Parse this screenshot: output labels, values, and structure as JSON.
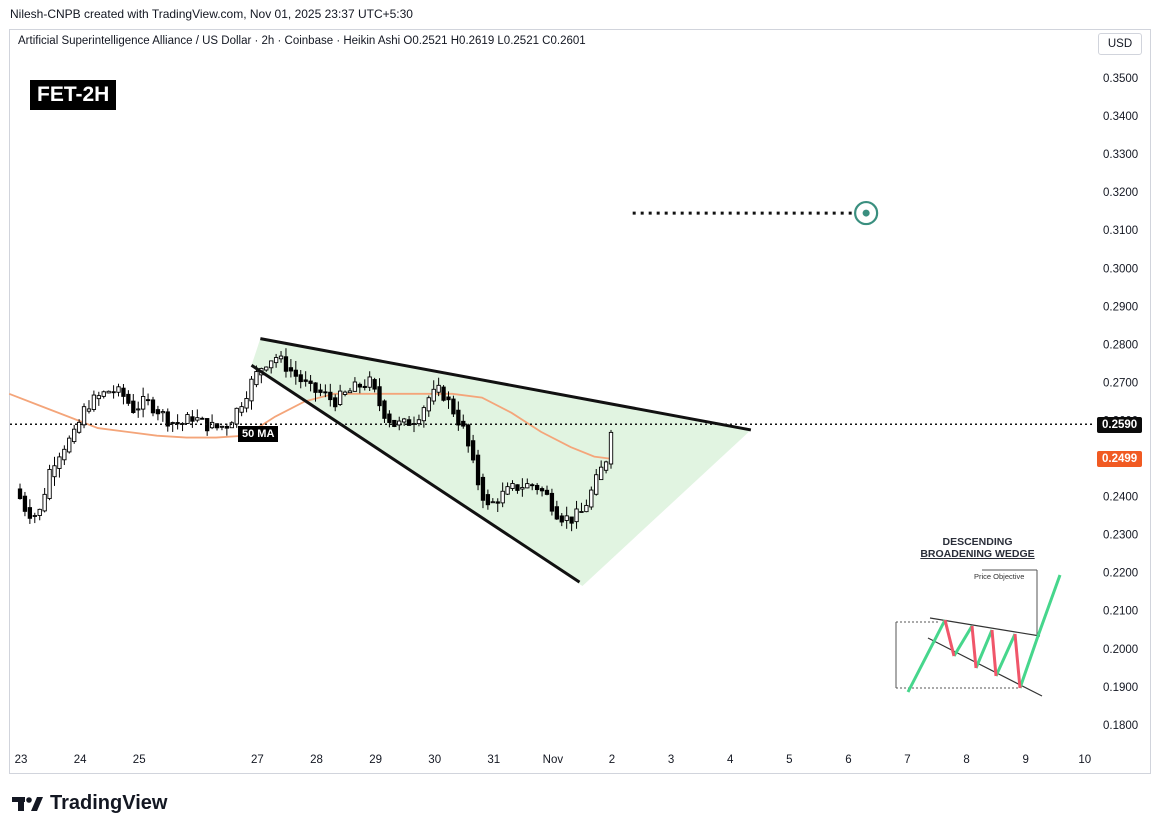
{
  "header": {
    "credit": "Nilesh-CNPB created with TradingView.com, Nov 01, 2025 23:37 UTC+5:30",
    "legend": "Artificial Superintelligence Alliance / US Dollar · 2h · Coinbase · Heikin Ashi  O0.2521  H0.2619  L0.2521  C0.2601",
    "currency": "USD"
  },
  "tag": "FET-2H",
  "ma_label": "50 MA",
  "price_badges": {
    "current": "0.2590",
    "ma": "0.2499"
  },
  "footer": {
    "brand": "TradingView"
  },
  "inset": {
    "title_line1": "DESCENDING",
    "title_line2": "BROADENING WEDGE",
    "objective_label": "Price Objective"
  },
  "colors": {
    "up": "#000000",
    "down": "#000000",
    "ma": "#f4a57a",
    "wedge_fill": "#c8ebc8",
    "target": "#3a8f7f",
    "badge_ma": "#f15a22",
    "inset_green": "#46d68c",
    "inset_red": "#f0566a"
  },
  "chart_data": {
    "type": "candlestick",
    "title": "Artificial Superintelligence Alliance / US Dollar · 2h · Coinbase · Heikin Ashi",
    "ylim": [
      0.175,
      0.359
    ],
    "y_ticks": [
      "0.3500",
      "0.3400",
      "0.3300",
      "0.3200",
      "0.3100",
      "0.3000",
      "0.2900",
      "0.2800",
      "0.2700",
      "0.2600",
      "0.2500",
      "0.2400",
      "0.2300",
      "0.2200",
      "0.2100",
      "0.2000",
      "0.1900",
      "0.1800"
    ],
    "x_ticks": [
      {
        "label": "23",
        "x": 0
      },
      {
        "label": "24",
        "x": 1
      },
      {
        "label": "25",
        "x": 2
      },
      {
        "label": "27",
        "x": 4
      },
      {
        "label": "28",
        "x": 5
      },
      {
        "label": "29",
        "x": 6
      },
      {
        "label": "30",
        "x": 7
      },
      {
        "label": "31",
        "x": 8
      },
      {
        "label": "Nov",
        "x": 9
      },
      {
        "label": "2",
        "x": 10
      },
      {
        "label": "3",
        "x": 11
      },
      {
        "label": "4",
        "x": 12
      },
      {
        "label": "5",
        "x": 13
      },
      {
        "label": "6",
        "x": 14
      },
      {
        "label": "7",
        "x": 15
      },
      {
        "label": "8",
        "x": 16
      },
      {
        "label": "9",
        "x": 17
      },
      {
        "label": "10",
        "x": 18
      }
    ],
    "current_price": 0.259,
    "ma50_value": 0.2499,
    "close_path": [
      [
        -0.1,
        0.242
      ],
      [
        0.1,
        0.236
      ],
      [
        0.3,
        0.235
      ],
      [
        0.5,
        0.248
      ],
      [
        0.7,
        0.253
      ],
      [
        0.9,
        0.256
      ],
      [
        1.1,
        0.264
      ],
      [
        1.3,
        0.266
      ],
      [
        1.5,
        0.268
      ],
      [
        1.7,
        0.267
      ],
      [
        1.9,
        0.263
      ],
      [
        2.1,
        0.265
      ],
      [
        2.3,
        0.263
      ],
      [
        2.5,
        0.26
      ],
      [
        2.7,
        0.259
      ],
      [
        2.9,
        0.261
      ],
      [
        3.1,
        0.259
      ],
      [
        3.3,
        0.258
      ],
      [
        3.5,
        0.259
      ],
      [
        3.7,
        0.264
      ],
      [
        3.9,
        0.27
      ],
      [
        4.1,
        0.275
      ],
      [
        4.3,
        0.277
      ],
      [
        4.5,
        0.274
      ],
      [
        4.7,
        0.271
      ],
      [
        4.9,
        0.268
      ],
      [
        5.1,
        0.267
      ],
      [
        5.3,
        0.265
      ],
      [
        5.5,
        0.267
      ],
      [
        5.7,
        0.269
      ],
      [
        5.9,
        0.27
      ],
      [
        6.1,
        0.263
      ],
      [
        6.3,
        0.259
      ],
      [
        6.5,
        0.259
      ],
      [
        6.7,
        0.261
      ],
      [
        6.9,
        0.266
      ],
      [
        7.1,
        0.268
      ],
      [
        7.3,
        0.263
      ],
      [
        7.5,
        0.257
      ],
      [
        7.7,
        0.245
      ],
      [
        7.9,
        0.237
      ],
      [
        8.1,
        0.24
      ],
      [
        8.3,
        0.242
      ],
      [
        8.5,
        0.243
      ],
      [
        8.7,
        0.243
      ],
      [
        8.9,
        0.24
      ],
      [
        9.1,
        0.235
      ],
      [
        9.3,
        0.234
      ],
      [
        9.5,
        0.236
      ],
      [
        9.7,
        0.243
      ],
      [
        9.9,
        0.25
      ],
      [
        10.0,
        0.2601
      ]
    ],
    "ma50": [
      [
        -0.2,
        0.267
      ],
      [
        0.3,
        0.264
      ],
      [
        0.8,
        0.261
      ],
      [
        1.3,
        0.258
      ],
      [
        1.8,
        0.257
      ],
      [
        2.3,
        0.256
      ],
      [
        2.8,
        0.2555
      ],
      [
        3.3,
        0.2555
      ],
      [
        3.8,
        0.256
      ],
      [
        4.3,
        0.261
      ],
      [
        4.8,
        0.265
      ],
      [
        5.3,
        0.267
      ],
      [
        5.8,
        0.267
      ],
      [
        6.3,
        0.267
      ],
      [
        6.8,
        0.267
      ],
      [
        7.3,
        0.267
      ],
      [
        7.8,
        0.266
      ],
      [
        8.3,
        0.262
      ],
      [
        8.8,
        0.257
      ],
      [
        9.3,
        0.253
      ],
      [
        9.7,
        0.2505
      ],
      [
        10.0,
        0.2499
      ]
    ],
    "wedge": {
      "upper": [
        [
          4.05,
          0.2815
        ],
        [
          12.35,
          0.2575
        ]
      ],
      "lower": [
        [
          3.9,
          0.2745
        ],
        [
          9.45,
          0.2175
        ]
      ],
      "fill_polygon": [
        [
          4.05,
          0.2815
        ],
        [
          12.35,
          0.2575
        ],
        [
          9.5,
          0.2165
        ],
        [
          3.9,
          0.2745
        ]
      ]
    },
    "target": {
      "price": 0.3145,
      "x_start": 10.35,
      "x_end": 14.3
    }
  }
}
